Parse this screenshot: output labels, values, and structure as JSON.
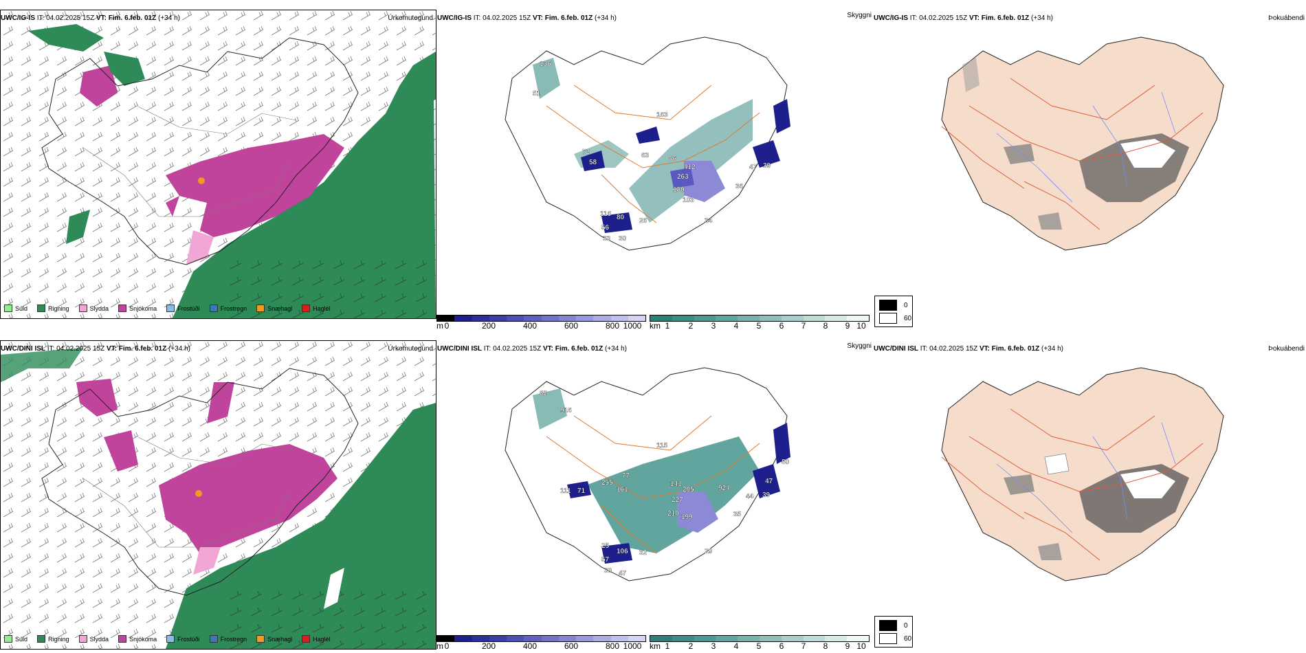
{
  "rows": [
    {
      "model": "UWC/IG-IS",
      "it_label": "IT:",
      "it_value": "04.02.2025 15Z",
      "vt_label": "VT:",
      "vt_value": "Fim. 6.feb. 01Z",
      "lead": "(+34 h)",
      "precip_title": "Úrkomutegund",
      "vis_title": "Skyggni",
      "fog_title": "Þokuábendi",
      "vis_labels": [
        "136",
        "51",
        "163",
        "72",
        "58",
        "63",
        "86",
        "412",
        "263",
        "180",
        "103",
        "36",
        "47",
        "39",
        "116",
        "80",
        "56",
        "33",
        "30",
        "34",
        "26"
      ]
    },
    {
      "model": "UWC/DINI ISL",
      "it_label": "IT:",
      "it_value": "04.02.2025 15Z",
      "vt_label": "VT:",
      "vt_value": "Fim. 6.feb. 01Z",
      "lead": "(+34 h)",
      "precip_title": "Úrkomutegund",
      "vis_title": "Skyggni",
      "fog_title": "Þokuábendi",
      "vis_labels": [
        "82",
        "916",
        "115",
        "77",
        "255",
        "161",
        "71",
        "111",
        "141",
        "205",
        "924",
        "227",
        "210",
        "199",
        "35",
        "44",
        "39",
        "47",
        "80",
        "25",
        "106",
        "57",
        "30",
        "47",
        "29",
        "32"
      ]
    }
  ],
  "precip_legend": [
    {
      "label": "Súld",
      "color": "#90ee90"
    },
    {
      "label": "Rigning",
      "color": "#2e8b57"
    },
    {
      "label": "Slydda",
      "color": "#f2a6d6"
    },
    {
      "label": "Snjókoma",
      "color": "#c0449c"
    },
    {
      "label": "Frostúði",
      "color": "#87bde8"
    },
    {
      "label": "Frostregn",
      "color": "#3a78b8"
    },
    {
      "label": "Snæhagl",
      "color": "#f29a1f"
    },
    {
      "label": "Haglél",
      "color": "#e01b1b"
    }
  ],
  "ceiling_bar": {
    "unit": "m",
    "ticks": [
      "0",
      "200",
      "400",
      "600",
      "800",
      "1000"
    ]
  },
  "visibility_bar": {
    "unit": "km",
    "ticks": [
      "1",
      "2",
      "3",
      "4",
      "5",
      "6",
      "7",
      "8",
      "9",
      "10"
    ]
  },
  "fog_legend": [
    "0",
    "60"
  ],
  "colors": {
    "rain": "#2e8b57",
    "snow": "#c0449c",
    "sleet": "#f2a6d6",
    "ceiling_dark": "#1c1f8c",
    "teal": "#3b8d86",
    "land_fog": "#f6dccb",
    "roads": "#e0782c",
    "rivers": "#6f8cf0"
  }
}
